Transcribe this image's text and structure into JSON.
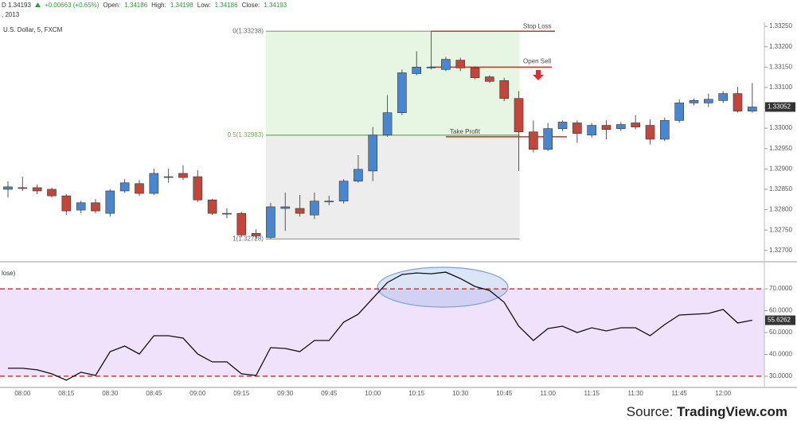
{
  "header": {
    "symbol": "D 1.34193",
    "change": "+0.00663 (+0.65%)",
    "open_label": "Open:",
    "open": "1.34186",
    "high_label": "High:",
    "high": "1.34198",
    "low_label": "Low:",
    "low": "1.34186",
    "close_label": "Close:",
    "close": "1.34193",
    "date": ", 2013"
  },
  "chart_data": [
    {
      "type": "candlestick",
      "title": "U.S. Dollar, 5, FXCM",
      "up_color": "#4a86d0",
      "down_color": "#c2473a",
      "open": [
        1.3285,
        1.32854,
        1.32854,
        1.3285,
        1.32834,
        1.32799,
        1.32817,
        1.32791,
        1.32846,
        1.32864,
        1.3284,
        1.32879,
        1.32889,
        1.32881,
        1.32824,
        1.32791,
        1.32791,
        1.32742,
        1.32732,
        1.32803,
        1.32803,
        1.32787,
        1.32821,
        1.32821,
        1.3287,
        1.32895,
        1.32983,
        1.33038,
        1.33134,
        1.3315,
        1.33144,
        1.33167,
        1.33148,
        1.33126,
        1.33117,
        1.33073,
        1.32991,
        1.32948,
        1.32999,
        1.33013,
        1.32983,
        1.33007,
        1.32999,
        1.33013,
        1.33007,
        1.32973,
        1.33019,
        1.33062,
        1.33062,
        1.33068,
        1.33085,
        1.33042
      ],
      "high": [
        1.3287,
        1.32881,
        1.32862,
        1.32854,
        1.32838,
        1.32822,
        1.32826,
        1.3285,
        1.32875,
        1.32873,
        1.32901,
        1.32901,
        1.32909,
        1.32897,
        1.32826,
        1.32803,
        1.32795,
        1.32752,
        1.32817,
        1.32842,
        1.32836,
        1.32842,
        1.32834,
        1.32875,
        1.32934,
        1.33003,
        1.33081,
        1.33144,
        1.33189,
        1.33238,
        1.33175,
        1.33173,
        1.33152,
        1.3313,
        1.33124,
        1.33091,
        1.33019,
        1.33013,
        1.33019,
        1.33019,
        1.33013,
        1.33019,
        1.33015,
        1.33032,
        1.33022,
        1.33026,
        1.33071,
        1.33073,
        1.33085,
        1.33091,
        1.33101,
        1.33111
      ],
      "low": [
        1.3283,
        1.32846,
        1.32838,
        1.3283,
        1.32787,
        1.32791,
        1.32791,
        1.32783,
        1.32842,
        1.32834,
        1.32836,
        1.32866,
        1.32873,
        1.32819,
        1.32787,
        1.32779,
        1.32732,
        1.32728,
        1.32728,
        1.32748,
        1.32783,
        1.32777,
        1.32811,
        1.32815,
        1.32866,
        1.3287,
        1.32979,
        1.33032,
        1.3313,
        1.33144,
        1.3314,
        1.3314,
        1.3312,
        1.33111,
        1.33066,
        1.32895,
        1.3294,
        1.32944,
        1.32993,
        1.32964,
        1.32977,
        1.32973,
        1.32993,
        1.32997,
        1.3296,
        1.32968,
        1.33013,
        1.33056,
        1.33052,
        1.33062,
        1.33038,
        1.33038
      ],
      "close": [
        1.32856,
        1.32852,
        1.32846,
        1.32834,
        1.32797,
        1.32817,
        1.32797,
        1.32846,
        1.32866,
        1.3284,
        1.32889,
        1.32881,
        1.32879,
        1.32824,
        1.32791,
        1.32791,
        1.32738,
        1.32736,
        1.32807,
        1.32807,
        1.32791,
        1.32821,
        1.32821,
        1.3287,
        1.32899,
        1.32983,
        1.33038,
        1.33136,
        1.3315,
        1.3315,
        1.33169,
        1.33148,
        1.33124,
        1.33115,
        1.33073,
        1.32991,
        1.32948,
        1.32999,
        1.33015,
        1.32987,
        1.33007,
        1.32997,
        1.33009,
        1.33003,
        1.32973,
        1.33019,
        1.33062,
        1.33068,
        1.33071,
        1.33085,
        1.33042,
        1.33052
      ],
      "ylim": [
        1.3268,
        1.3326
      ],
      "yticks": [
        {
          "value": 1.327,
          "label": "1.32700"
        },
        {
          "value": 1.3275,
          "label": "1.32750"
        },
        {
          "value": 1.328,
          "label": "1.32800"
        },
        {
          "value": 1.3285,
          "label": "1.32850"
        },
        {
          "value": 1.329,
          "label": "1.32900"
        },
        {
          "value": 1.3295,
          "label": "1.32950"
        },
        {
          "value": 1.33,
          "label": "1.33000"
        },
        {
          "value": 1.3305,
          "label": "1.33050"
        },
        {
          "value": 1.331,
          "label": "1.33100"
        },
        {
          "value": 1.3315,
          "label": "1.33150"
        },
        {
          "value": 1.332,
          "label": "1.33200"
        },
        {
          "value": 1.3325,
          "label": "1.33250"
        }
      ],
      "fib_levels": [
        {
          "value": 1.33238,
          "label": "0(1.33238)"
        },
        {
          "value": 1.32983,
          "label": "0.5(1.32983)"
        },
        {
          "value": 1.32728,
          "label": "1(1.32728)"
        }
      ],
      "fib_upper_color": "#e6f6e3",
      "fib_lower_color": "#ededed",
      "fib_mid_color": "#6ab04c",
      "trade_levels": [
        {
          "value": 1.33238,
          "label": "Stop Loss"
        },
        {
          "value": 1.3315,
          "label": "Open Sell"
        },
        {
          "value": 1.32979,
          "label": "Take Profit"
        }
      ],
      "trade_color": "#c0392b",
      "last_price": {
        "value": 1.33052,
        "label": "1.33052"
      }
    },
    {
      "type": "line",
      "title": "lose)",
      "color": "#111111",
      "categories": [
        null,
        "08:00",
        null,
        null,
        "08:15",
        null,
        null,
        "08:30",
        null,
        null,
        "08:45",
        null,
        null,
        "09:00",
        null,
        null,
        "09:15",
        null,
        null,
        "09:30",
        null,
        null,
        "09:45",
        null,
        null,
        "10:00",
        null,
        null,
        "10:15",
        null,
        null,
        "10:30",
        null,
        null,
        "10:45",
        null,
        null,
        "11:00",
        null,
        null,
        "11:15",
        null,
        null,
        "11:30",
        null,
        null,
        "11:45",
        null,
        null,
        "12:00",
        null,
        null
      ],
      "values": [
        33.64,
        33.64,
        32.91,
        31.09,
        28.18,
        31.82,
        30.36,
        41.27,
        43.82,
        40.18,
        48.55,
        48.55,
        47.45,
        40.18,
        36.55,
        36.55,
        31.09,
        30.36,
        43.09,
        42.73,
        41.27,
        46.36,
        46.36,
        54.73,
        58.36,
        65.64,
        72.91,
        76.55,
        77.27,
        76.91,
        77.64,
        74.73,
        71.09,
        69.27,
        63.82,
        52.91,
        46.36,
        51.82,
        52.91,
        50.0,
        52.18,
        50.73,
        52.18,
        52.18,
        48.55,
        53.64,
        58.0,
        58.36,
        58.73,
        60.55,
        54.36,
        55.6262
      ],
      "value_labels": [
        null,
        null,
        null,
        null,
        null,
        null,
        null,
        null,
        null,
        null,
        null,
        null,
        null,
        null,
        null,
        null,
        null,
        null,
        null,
        null,
        null,
        null,
        null,
        null,
        null,
        null,
        null,
        null,
        null,
        null,
        null,
        null,
        null,
        null,
        null,
        null,
        null,
        null,
        null,
        null,
        null,
        null,
        null,
        null,
        null,
        null,
        null,
        null,
        null,
        null,
        null,
        "55.6262"
      ],
      "ylim": [
        25.6,
        78.4
      ],
      "yticks": [
        {
          "value": 30,
          "label": "30.0000"
        },
        {
          "value": 40,
          "label": "40.0000"
        },
        {
          "value": 50,
          "label": "50.0000"
        },
        {
          "value": 60,
          "label": "60.0000"
        },
        {
          "value": 70,
          "label": "70.0000"
        }
      ],
      "levels": [
        70,
        30
      ],
      "level_color": "#e03030",
      "band_color": "#f1e2fb"
    }
  ],
  "source": {
    "prefix": "Source:",
    "name": "TradingView.com"
  }
}
